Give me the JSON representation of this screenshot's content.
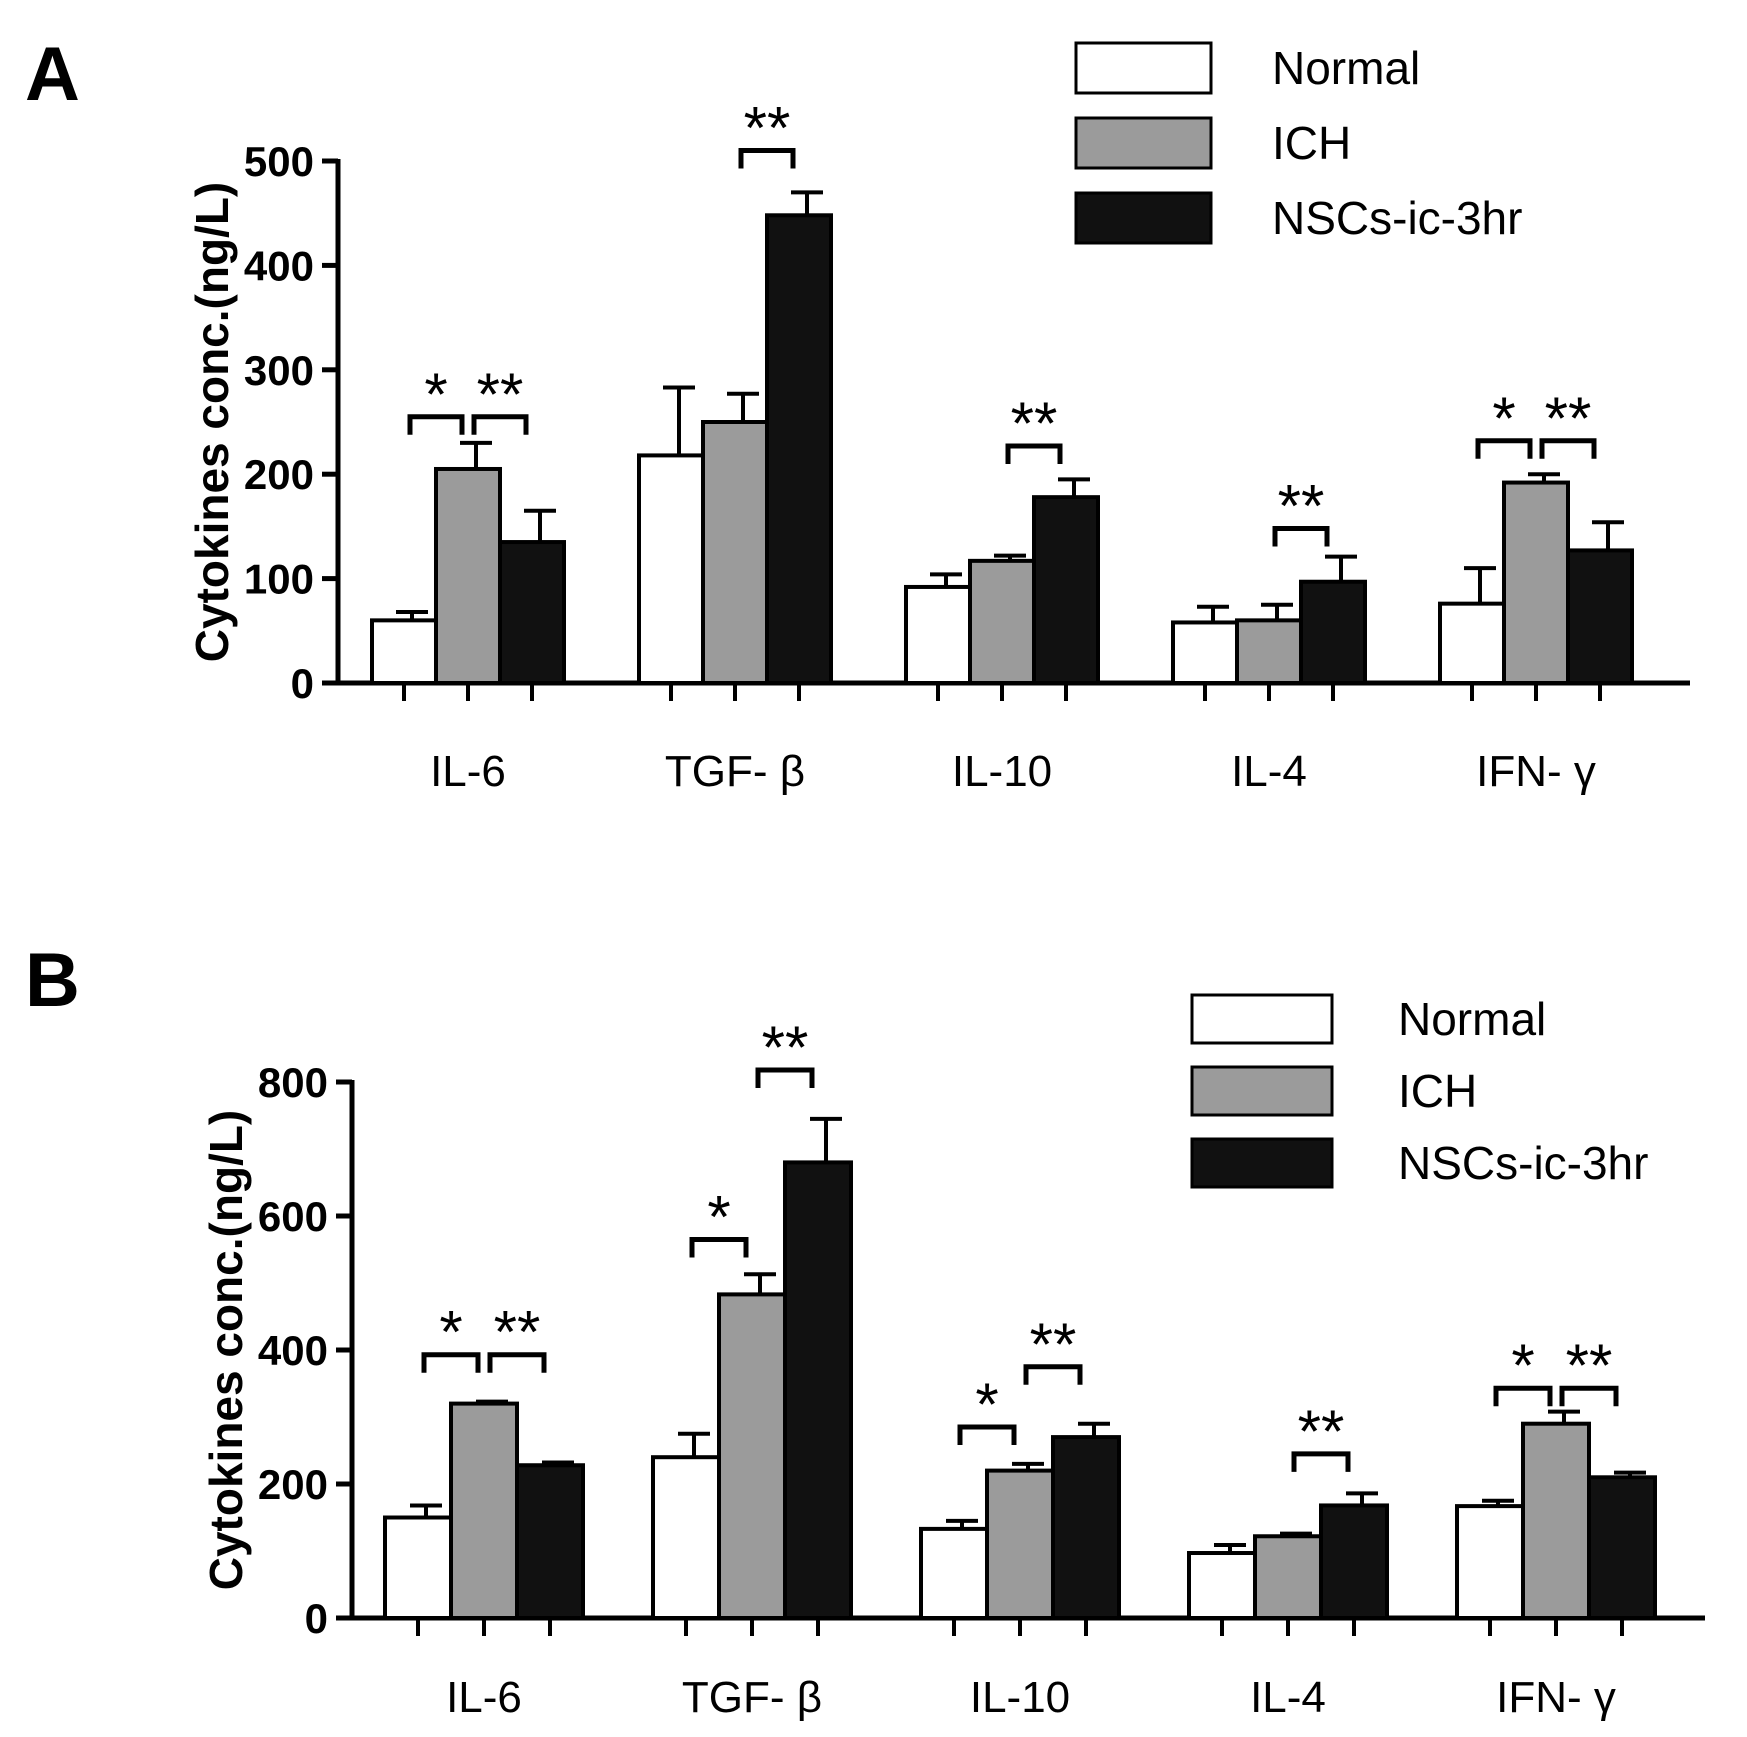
{
  "chart_data": [
    {
      "panel": "A",
      "type": "bar",
      "ylabel": "Cytokines conc.(ng/L)",
      "ylim": [
        0,
        500
      ],
      "yticks": [
        0,
        100,
        200,
        300,
        400,
        500
      ],
      "categories": [
        "IL-6",
        "TGF- β",
        "IL-10",
        "IL-4",
        "IFN- γ"
      ],
      "series": [
        {
          "name": "Normal",
          "color": "#ffffff",
          "values": [
            60,
            218,
            92,
            58,
            76
          ],
          "errors": [
            8,
            65,
            12,
            15,
            34
          ]
        },
        {
          "name": "ICH",
          "color": "#9b9b9b",
          "values": [
            205,
            250,
            117,
            60,
            192
          ],
          "errors": [
            25,
            27,
            5,
            15,
            8
          ]
        },
        {
          "name": "NSCs-ic-3hr",
          "color": "#111111",
          "values": [
            135,
            448,
            178,
            97,
            127
          ],
          "errors": [
            30,
            22,
            17,
            24,
            27
          ]
        }
      ],
      "significance": [
        {
          "category": 0,
          "from": 0,
          "to": 1,
          "label": "*",
          "y": 255
        },
        {
          "category": 0,
          "from": 1,
          "to": 2,
          "label": "**",
          "y": 255
        },
        {
          "category": 1,
          "from": 1,
          "to": 2,
          "label": "**",
          "y": 510
        },
        {
          "category": 2,
          "from": 1,
          "to": 2,
          "label": "**",
          "y": 227
        },
        {
          "category": 3,
          "from": 1,
          "to": 2,
          "label": "**",
          "y": 148
        },
        {
          "category": 4,
          "from": 0,
          "to": 1,
          "label": "*",
          "y": 232
        },
        {
          "category": 4,
          "from": 1,
          "to": 2,
          "label": "**",
          "y": 232
        }
      ],
      "legend_position": "top-right"
    },
    {
      "panel": "B",
      "type": "bar",
      "ylabel": "Cytokines conc.(ng/L)",
      "ylim": [
        0,
        800
      ],
      "yticks": [
        0,
        200,
        400,
        600,
        800
      ],
      "categories": [
        "IL-6",
        "TGF- β",
        "IL-10",
        "IL-4",
        "IFN- γ"
      ],
      "series": [
        {
          "name": "Normal",
          "color": "#ffffff",
          "values": [
            150,
            240,
            133,
            97,
            167
          ],
          "errors": [
            18,
            35,
            12,
            12,
            8
          ]
        },
        {
          "name": "ICH",
          "color": "#9b9b9b",
          "values": [
            320,
            483,
            220,
            122,
            290
          ],
          "errors": [
            3,
            30,
            10,
            4,
            18
          ]
        },
        {
          "name": "NSCs-ic-3hr",
          "color": "#111111",
          "values": [
            228,
            680,
            270,
            168,
            210
          ],
          "errors": [
            4,
            65,
            20,
            18,
            7
          ]
        }
      ],
      "significance": [
        {
          "category": 0,
          "from": 0,
          "to": 1,
          "label": "*",
          "y": 393
        },
        {
          "category": 0,
          "from": 1,
          "to": 2,
          "label": "**",
          "y": 393
        },
        {
          "category": 1,
          "from": 0,
          "to": 1,
          "label": "*",
          "y": 565
        },
        {
          "category": 1,
          "from": 1,
          "to": 2,
          "label": "**",
          "y": 818
        },
        {
          "category": 2,
          "from": 0,
          "to": 1,
          "label": "*",
          "y": 285
        },
        {
          "category": 2,
          "from": 1,
          "to": 2,
          "label": "**",
          "y": 375
        },
        {
          "category": 3,
          "from": 1,
          "to": 2,
          "label": "**",
          "y": 245
        },
        {
          "category": 4,
          "from": 0,
          "to": 1,
          "label": "*",
          "y": 343
        },
        {
          "category": 4,
          "from": 1,
          "to": 2,
          "label": "**",
          "y": 343
        }
      ],
      "legend_position": "top-right"
    }
  ]
}
